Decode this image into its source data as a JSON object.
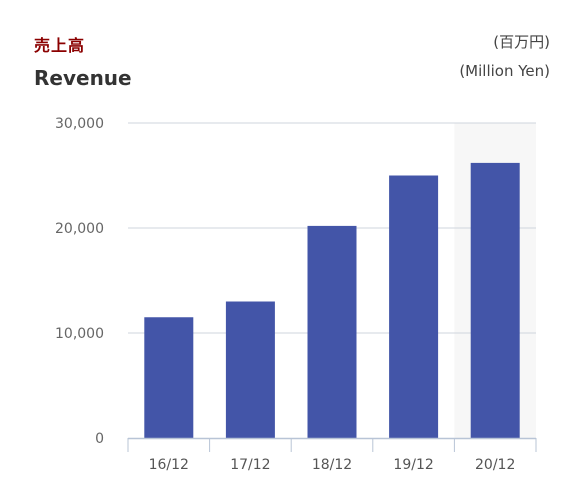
{
  "header": {
    "title_jp": "売上高",
    "title_en": "Revenue",
    "unit_jp": "(百万円)",
    "unit_en": "(Million Yen)"
  },
  "chart_data": {
    "type": "bar",
    "title": "Revenue",
    "categories": [
      "16/12",
      "17/12",
      "18/12",
      "19/12",
      "20/12"
    ],
    "values": [
      11500,
      13000,
      20200,
      25000,
      26200
    ],
    "xlabel": "",
    "ylabel": "",
    "ylim": [
      0,
      30000
    ],
    "yticks": [
      0,
      10000,
      20000,
      30000
    ],
    "ytick_labels": [
      "0",
      "10,000",
      "20,000",
      "30,000"
    ],
    "grid": true,
    "bar_color": "#4355a8",
    "highlight_category": "20/12",
    "highlight_color": "#f7f7f7"
  }
}
